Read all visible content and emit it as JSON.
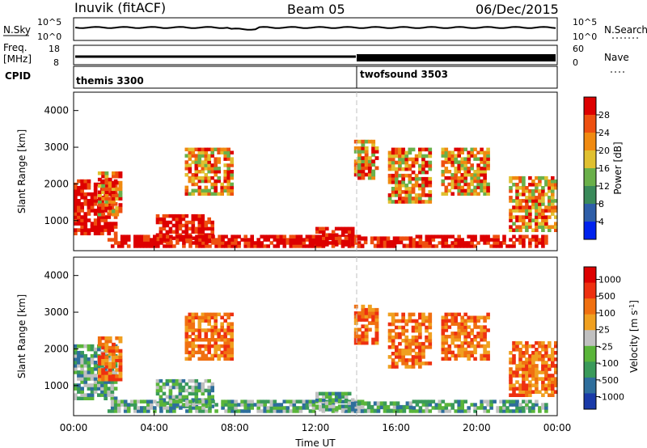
{
  "header": {
    "station": "Inuvik (fitACF)",
    "beam": "Beam 05",
    "date": "06/Dec/2015"
  },
  "left_labels": {
    "nsky": "N.Sky",
    "freq_line1": "Freq.",
    "freq_line2": "[MHz]",
    "cpid": "CPID"
  },
  "right_labels": {
    "nsearch": "N.Search",
    "nave": "Nave"
  },
  "colors": {
    "power": [
      "#0022ee",
      "#2e5ea8",
      "#3a8a5a",
      "#6ab04a",
      "#e0c030",
      "#f08a10",
      "#ee5010",
      "#dd0000"
    ],
    "velocity": [
      "#1a3aa8",
      "#2e6e9c",
      "#3a9a5a",
      "#5ab53a",
      "#c0c0c0",
      "#f0a020",
      "#f07010",
      "#ee3010",
      "#dd0000"
    ]
  },
  "chart_data": [
    {
      "type": "line",
      "panel": "N.Sky / N.Search",
      "yticks_left": [
        "10^5",
        "10^0"
      ],
      "yticks_right": [
        "10^5",
        "10^0"
      ],
      "series": [
        {
          "name": "N.Sky"
        },
        {
          "name": "N.Search"
        }
      ]
    },
    {
      "type": "line",
      "panel": "Freq. / Nave",
      "ylabel": "Freq. [MHz]",
      "yticks_left": [
        18,
        8
      ],
      "yticks_right": [
        60,
        0
      ],
      "series": [
        {
          "name": "Freq."
        },
        {
          "name": "Nave"
        }
      ],
      "nave_step_x": "14:00"
    },
    {
      "type": "table",
      "panel": "CPID",
      "segments": [
        {
          "start": "00:00",
          "label": "themis 3300"
        },
        {
          "start": "14:00",
          "label": "twofsound 3503"
        }
      ]
    },
    {
      "type": "heatmap",
      "panel": "power",
      "xlabel": "",
      "ylabel": "Slant Range [km]",
      "yticks": [
        1000,
        2000,
        3000,
        4000
      ],
      "ylim": [
        180,
        4500
      ],
      "colorbar": {
        "label": "Power [dB]",
        "ticks": [
          4,
          8,
          12,
          16,
          20,
          24,
          28
        ]
      },
      "x_ticks": [
        "00:00",
        "04:00",
        "08:00",
        "12:00",
        "16:00",
        "20:00",
        "00:00"
      ]
    },
    {
      "type": "heatmap",
      "panel": "velocity",
      "xlabel": "Time UT",
      "ylabel": "Slant Range [km]",
      "yticks": [
        1000,
        2000,
        3000,
        4000
      ],
      "ylim": [
        180,
        4500
      ],
      "colorbar": {
        "label_main": "Velocity [m s",
        "label_sup": "-1",
        "label_end": "]",
        "ticks": [
          1000,
          500,
          100,
          25,
          -25,
          -100,
          -500,
          -1000
        ]
      },
      "x_ticks": [
        "00:00",
        "04:00",
        "08:00",
        "12:00",
        "16:00",
        "20:00",
        "00:00"
      ]
    }
  ]
}
